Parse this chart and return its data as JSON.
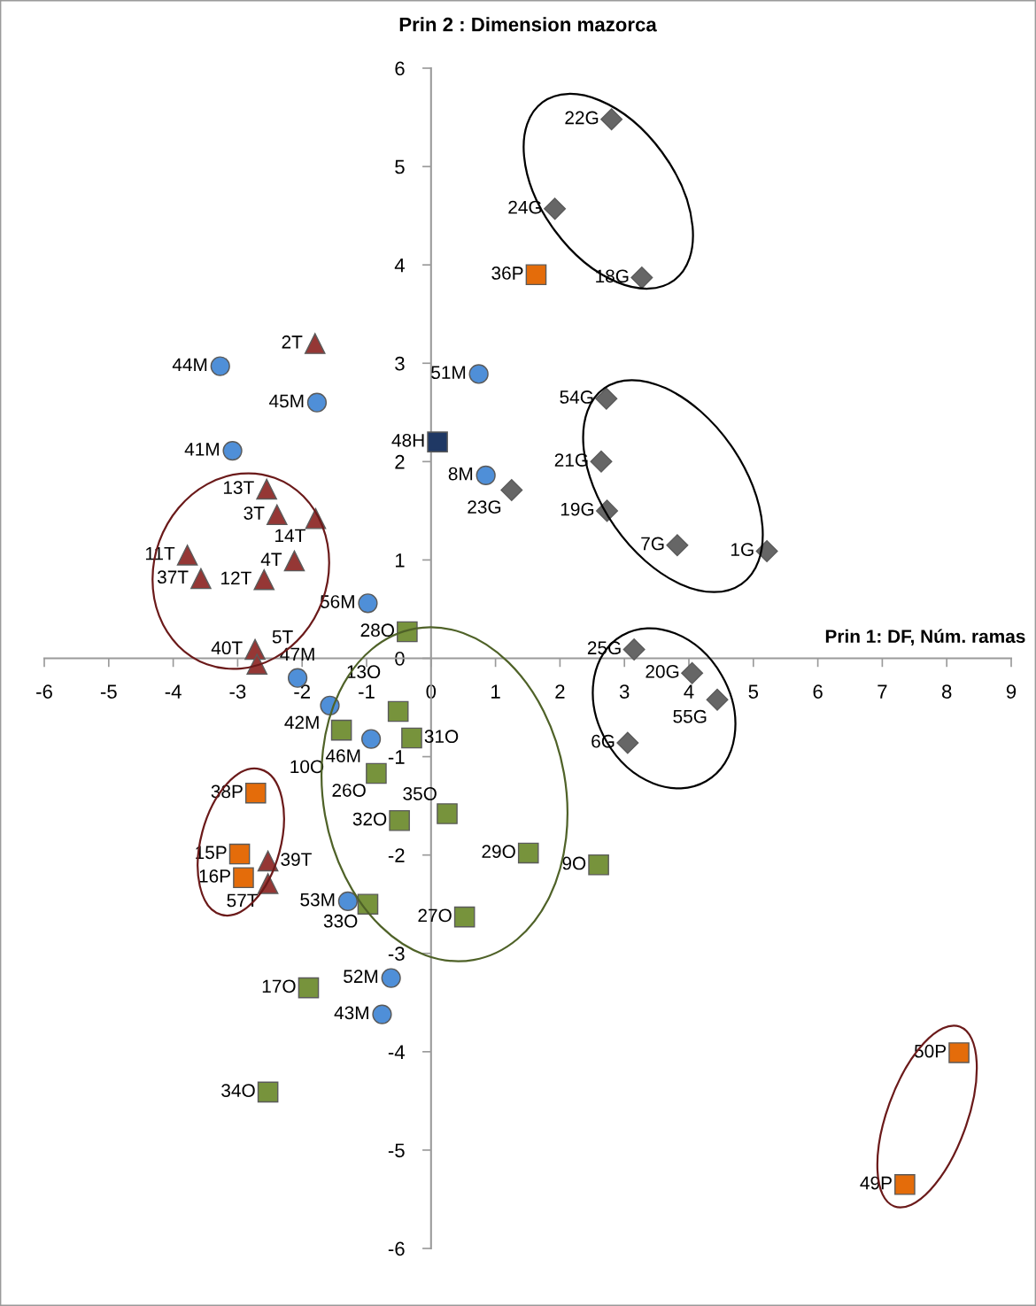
{
  "chart_data": {
    "type": "scatter",
    "title": "Prin 2 : Dimension mazorca",
    "xlabel": "Prin 1: DF, Núm. ramas",
    "xlim": [
      -6,
      9
    ],
    "ylim": [
      -6,
      6
    ],
    "xticks": [
      -6,
      -5,
      -4,
      -3,
      -2,
      -1,
      0,
      1,
      2,
      3,
      4,
      5,
      6,
      7,
      8,
      9
    ],
    "yticks": [
      -6,
      -5,
      -4,
      -3,
      -2,
      -1,
      0,
      1,
      2,
      3,
      4,
      5,
      6
    ],
    "grid": false,
    "series": [
      {
        "color": "#666666",
        "marker": "diamond",
        "x": [
          2.8,
          1.92,
          3.27,
          2.72,
          2.64,
          2.73,
          3.82,
          5.21,
          3.15,
          4.05,
          4.44,
          3.05,
          1.25
        ],
        "values": [
          5.48,
          4.57,
          3.87,
          2.64,
          2.0,
          1.5,
          1.15,
          1.09,
          0.09,
          -0.15,
          -0.42,
          -0.86,
          1.71
        ]
      },
      {
        "color": "#4f8fd8",
        "marker": "circle",
        "x": [
          -3.27,
          -1.77,
          0.74,
          -3.08,
          0.85,
          -0.98,
          -2.07,
          -1.57,
          -0.93,
          -1.29,
          -0.62,
          -0.76
        ],
        "values": [
          2.97,
          2.6,
          2.89,
          2.11,
          1.86,
          0.56,
          -0.2,
          -0.48,
          -0.82,
          -2.47,
          -3.25,
          -3.62
        ]
      },
      {
        "color": "#953735",
        "marker": "triangle",
        "x": [
          -1.8,
          -2.55,
          -2.39,
          -1.79,
          -3.78,
          -3.57,
          -2.12,
          -2.59,
          -2.73,
          -2.7,
          -2.53,
          -2.53
        ],
        "values": [
          3.2,
          1.72,
          1.46,
          1.42,
          1.05,
          0.81,
          0.99,
          0.8,
          0.09,
          -0.06,
          -2.06,
          -2.29
        ]
      },
      {
        "color": "#e46c0a",
        "marker": "square",
        "x": [
          1.63,
          -2.72,
          -2.97,
          -2.91,
          8.19,
          7.35
        ],
        "values": [
          3.9,
          -1.37,
          -1.99,
          -2.23,
          -4.01,
          -5.35
        ]
      },
      {
        "color": "#77933c",
        "marker": "square",
        "x": [
          -0.37,
          -0.51,
          -1.39,
          -0.3,
          -0.85,
          0.25,
          -0.49,
          1.51,
          2.6,
          -0.98,
          0.52,
          -1.9,
          -2.53
        ],
        "values": [
          0.27,
          -0.54,
          -0.73,
          -0.81,
          -1.17,
          -1.58,
          -1.65,
          -1.98,
          -2.1,
          -2.5,
          -2.63,
          -3.35,
          -4.41
        ]
      },
      {
        "color": "#1f3864",
        "marker": "square",
        "x": [
          0.1
        ],
        "values": [
          2.2
        ]
      }
    ],
    "annotations": [
      {
        "text": "22G",
        "x": 2.8,
        "y": 5.48
      },
      {
        "text": "24G",
        "x": 1.92,
        "y": 4.57
      },
      {
        "text": "18G",
        "x": 3.27,
        "y": 3.87
      },
      {
        "text": "54G",
        "x": 2.72,
        "y": 2.64
      },
      {
        "text": "21G",
        "x": 2.64,
        "y": 2.0
      },
      {
        "text": "19G",
        "x": 2.73,
        "y": 1.5
      },
      {
        "text": "7G",
        "x": 3.82,
        "y": 1.15
      },
      {
        "text": "1G",
        "x": 5.21,
        "y": 1.09
      },
      {
        "text": "25G",
        "x": 3.15,
        "y": 0.09
      },
      {
        "text": "20G",
        "x": 4.05,
        "y": -0.15
      },
      {
        "text": "55G",
        "x": 4.44,
        "y": -0.42
      },
      {
        "text": "6G",
        "x": 3.05,
        "y": -0.86
      },
      {
        "text": "23G",
        "x": 1.25,
        "y": 1.71
      },
      {
        "text": "44M",
        "x": -3.27,
        "y": 2.97
      },
      {
        "text": "45M",
        "x": -1.77,
        "y": 2.6
      },
      {
        "text": "51M",
        "x": 0.74,
        "y": 2.89
      },
      {
        "text": "41M",
        "x": -3.08,
        "y": 2.11
      },
      {
        "text": "8M",
        "x": 0.85,
        "y": 1.86
      },
      {
        "text": "56M",
        "x": -0.98,
        "y": 0.56
      },
      {
        "text": "47M",
        "x": -2.07,
        "y": -0.2
      },
      {
        "text": "42M",
        "x": -1.57,
        "y": -0.48
      },
      {
        "text": "46M",
        "x": -0.93,
        "y": -0.82
      },
      {
        "text": "53M",
        "x": -1.29,
        "y": -2.47
      },
      {
        "text": "52M",
        "x": -0.62,
        "y": -3.25
      },
      {
        "text": "43M",
        "x": -0.76,
        "y": -3.62
      },
      {
        "text": "2T",
        "x": -1.8,
        "y": 3.2
      },
      {
        "text": "13T",
        "x": -2.55,
        "y": 1.72
      },
      {
        "text": "3T",
        "x": -2.39,
        "y": 1.46
      },
      {
        "text": "14T",
        "x": -1.79,
        "y": 1.42
      },
      {
        "text": "11T",
        "x": -3.78,
        "y": 1.05
      },
      {
        "text": "37T",
        "x": -3.57,
        "y": 0.81
      },
      {
        "text": "4T",
        "x": -2.12,
        "y": 0.99
      },
      {
        "text": "12T",
        "x": -2.59,
        "y": 0.8
      },
      {
        "text": "40T",
        "x": -2.73,
        "y": 0.09
      },
      {
        "text": "5T",
        "x": -2.7,
        "y": -0.06
      },
      {
        "text": "39T",
        "x": -2.53,
        "y": -2.06
      },
      {
        "text": "57T",
        "x": -2.53,
        "y": -2.29
      },
      {
        "text": "36P",
        "x": 1.63,
        "y": 3.9
      },
      {
        "text": "38P",
        "x": -2.72,
        "y": -1.37
      },
      {
        "text": "15P",
        "x": -2.97,
        "y": -1.99
      },
      {
        "text": "16P",
        "x": -2.91,
        "y": -2.23
      },
      {
        "text": "50P",
        "x": 8.19,
        "y": -4.01
      },
      {
        "text": "49P",
        "x": 7.35,
        "y": -5.35
      },
      {
        "text": "28O",
        "x": -0.37,
        "y": 0.27
      },
      {
        "text": "13O",
        "x": -0.51,
        "y": -0.54
      },
      {
        "text": "10O",
        "x": -1.39,
        "y": -0.73
      },
      {
        "text": "31O",
        "x": -0.3,
        "y": -0.81
      },
      {
        "text": "26O",
        "x": -0.85,
        "y": -1.17
      },
      {
        "text": "35O",
        "x": 0.25,
        "y": -1.58
      },
      {
        "text": "32O",
        "x": -0.49,
        "y": -1.65
      },
      {
        "text": "29O",
        "x": 1.51,
        "y": -1.98
      },
      {
        "text": "9O",
        "x": 2.6,
        "y": -2.1
      },
      {
        "text": "33O",
        "x": -0.98,
        "y": -2.5
      },
      {
        "text": "27O",
        "x": 0.52,
        "y": -2.63
      },
      {
        "text": "17O",
        "x": -1.9,
        "y": -3.35
      },
      {
        "text": "34O",
        "x": -2.53,
        "y": -4.41
      },
      {
        "text": "48H",
        "x": 0.1,
        "y": 2.2
      }
    ]
  }
}
